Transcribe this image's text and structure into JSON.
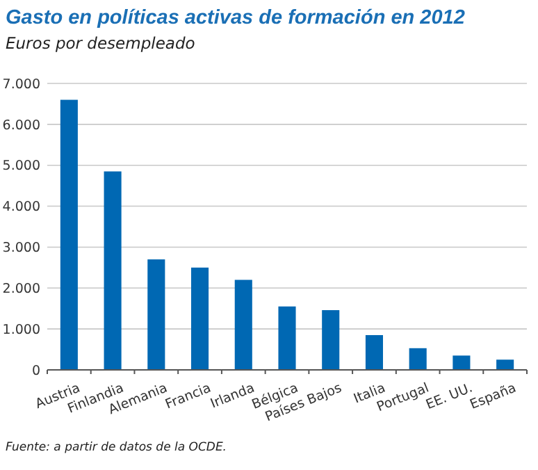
{
  "chart_data": {
    "type": "bar",
    "title": "Gasto en políticas activas de formación en 2012",
    "subtitle": "Euros por desempleado",
    "categories": [
      "Austria",
      "Finlandia",
      "Alemania",
      "Francia",
      "Irlanda",
      "Bélgica",
      "Países Bajos",
      "Italia",
      "Portugal",
      "EE. UU.",
      "España"
    ],
    "values": [
      6600,
      4850,
      2700,
      2500,
      2200,
      1550,
      1460,
      850,
      530,
      350,
      250
    ],
    "color": "#0068b3",
    "ylim": [
      0,
      7000
    ],
    "yticks": [
      {
        "value": 0,
        "label": "0"
      },
      {
        "value": 1000,
        "label": "1.000"
      },
      {
        "value": 2000,
        "label": "2.000"
      },
      {
        "value": 3000,
        "label": "3.000"
      },
      {
        "value": 4000,
        "label": "4.000"
      },
      {
        "value": 5000,
        "label": "5.000"
      },
      {
        "value": 6000,
        "label": "6.000"
      },
      {
        "value": 7000,
        "label": "7.000"
      }
    ],
    "grid": "y",
    "annotations": [
      "Fuente: a partir de datos de la OCDE."
    ]
  }
}
